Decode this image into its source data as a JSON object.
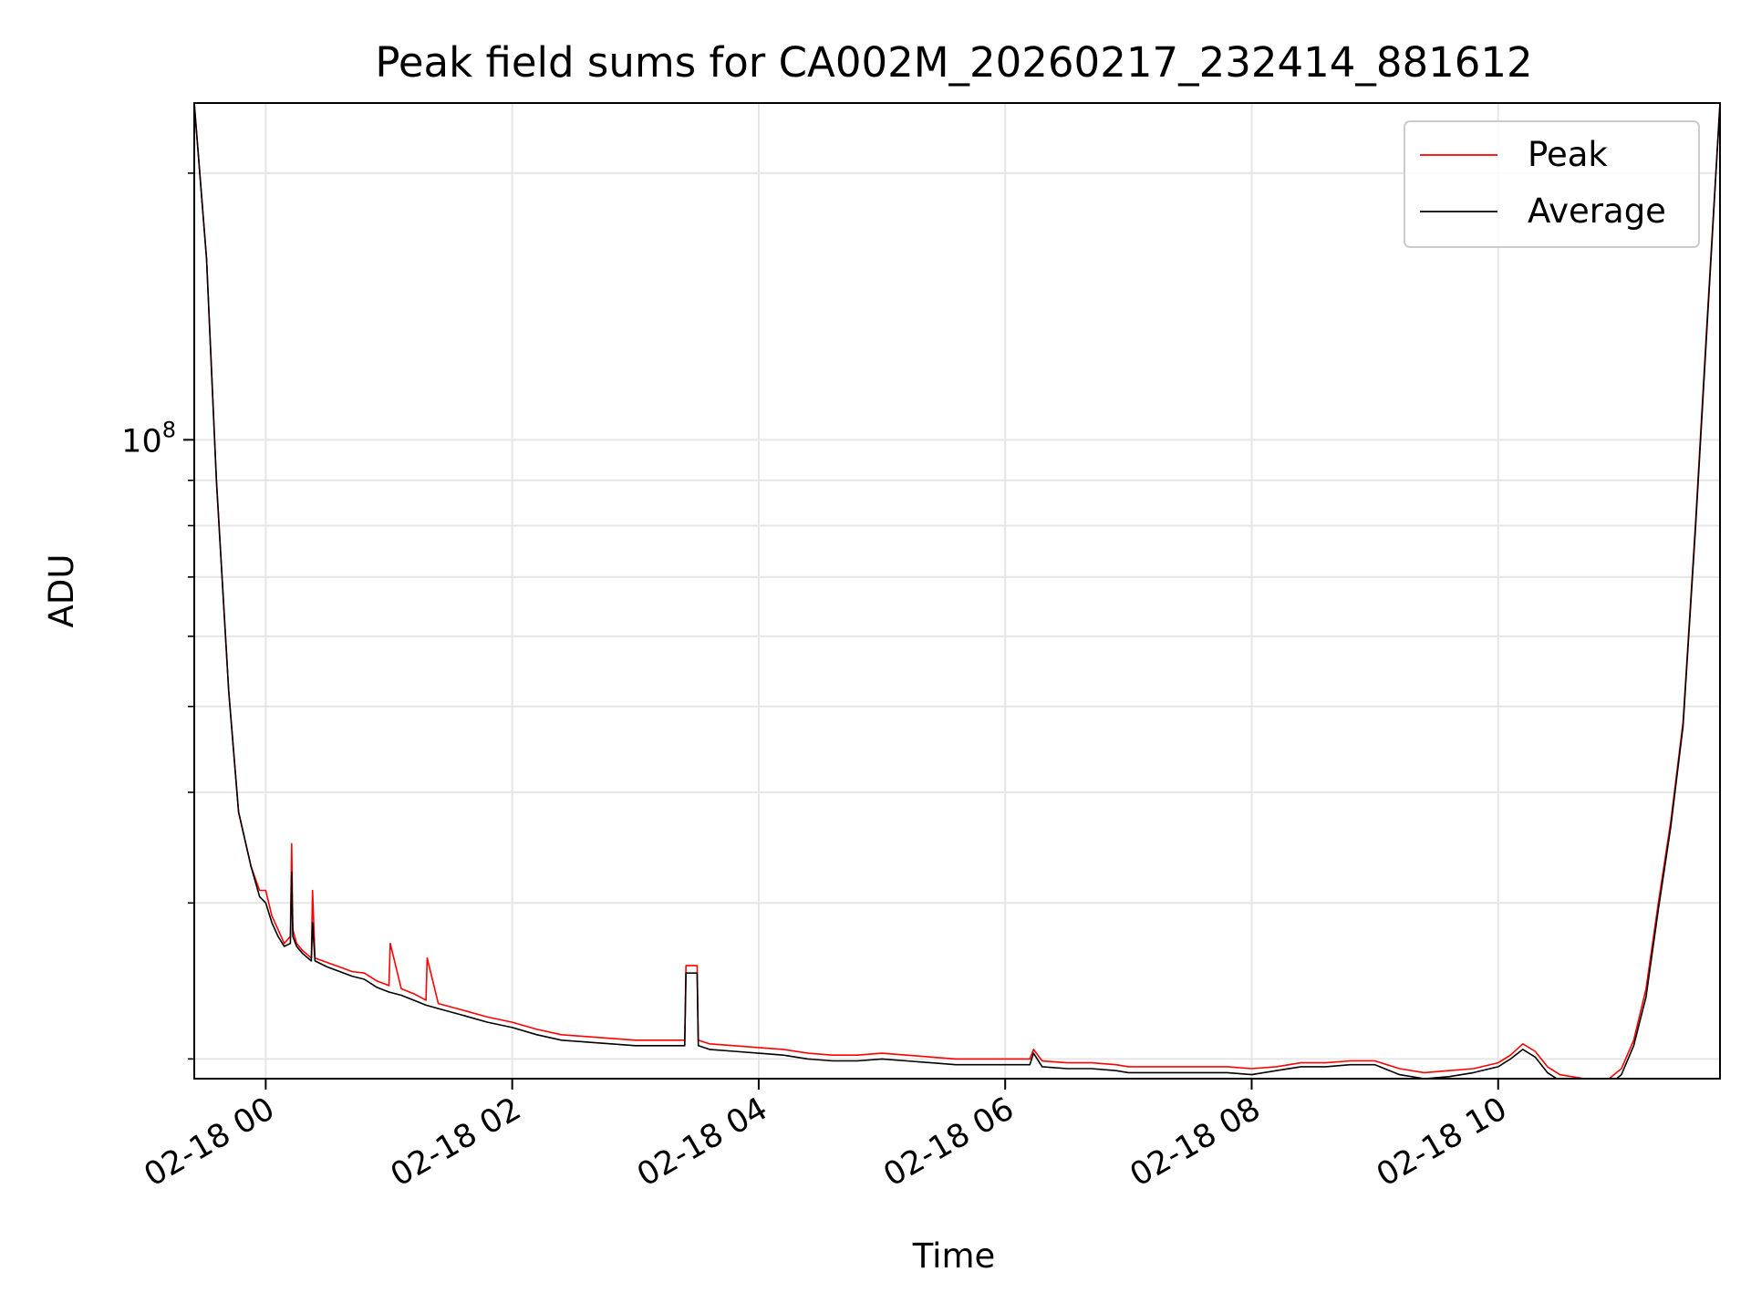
{
  "chart_data": {
    "type": "line",
    "title": "Peak field sums for CA002M_20260217_232414_881612",
    "xlabel": "Time",
    "ylabel": "ADU",
    "x_unit": "hours since 02-18 00:00 (negative = 02-17)",
    "xlim": [
      -0.58,
      11.8
    ],
    "x_ticks": [
      {
        "value": 0,
        "label": "02-18 00"
      },
      {
        "value": 2,
        "label": "02-18 02"
      },
      {
        "value": 4,
        "label": "02-18 04"
      },
      {
        "value": 6,
        "label": "02-18 06"
      },
      {
        "value": 8,
        "label": "02-18 08"
      },
      {
        "value": 10,
        "label": "02-18 10"
      }
    ],
    "y_scale": "log",
    "ylim": [
      19000000,
      240000000
    ],
    "y_major_ticks": [
      {
        "value": 100000000,
        "label_base": "10",
        "label_exp": "8"
      }
    ],
    "y_minor_ticks": [
      20000000,
      30000000,
      40000000,
      50000000,
      60000000,
      70000000,
      80000000,
      90000000,
      200000000
    ],
    "grid": true,
    "legend_position": "top-right",
    "series": [
      {
        "name": "Peak",
        "color": "#ff0000",
        "x": [
          -0.58,
          -0.48,
          -0.4,
          -0.3,
          -0.22,
          -0.12,
          -0.05,
          0.0,
          0.05,
          0.1,
          0.15,
          0.2,
          0.21,
          0.22,
          0.25,
          0.3,
          0.37,
          0.38,
          0.4,
          0.5,
          0.6,
          0.7,
          0.8,
          0.9,
          1.0,
          1.01,
          1.1,
          1.2,
          1.3,
          1.31,
          1.4,
          1.6,
          1.8,
          2.0,
          2.2,
          2.4,
          2.6,
          2.8,
          3.0,
          3.2,
          3.4,
          3.41,
          3.5,
          3.51,
          3.6,
          3.8,
          4.0,
          4.2,
          4.4,
          4.6,
          4.8,
          5.0,
          5.2,
          5.4,
          5.6,
          5.8,
          6.0,
          6.2,
          6.23,
          6.3,
          6.5,
          6.7,
          6.9,
          7.0,
          7.2,
          7.4,
          7.6,
          7.8,
          8.0,
          8.2,
          8.4,
          8.6,
          8.8,
          9.0,
          9.2,
          9.4,
          9.6,
          9.8,
          10.0,
          10.1,
          10.2,
          10.3,
          10.4,
          10.5,
          10.6,
          10.7,
          10.8,
          10.9,
          11.0,
          11.1,
          11.2,
          11.3,
          11.4,
          11.5,
          11.6,
          11.7,
          11.8
        ],
        "y": [
          240000000,
          160000000,
          90000000,
          52000000,
          38000000,
          33000000,
          31000000,
          31000000,
          29000000,
          28000000,
          27000000,
          27500000,
          35000000,
          28000000,
          27000000,
          26500000,
          26000000,
          31000000,
          26000000,
          25700000,
          25400000,
          25100000,
          25000000,
          24500000,
          24200000,
          27000000,
          24000000,
          23700000,
          23300000,
          26000000,
          23100000,
          22700000,
          22300000,
          22000000,
          21600000,
          21300000,
          21200000,
          21100000,
          21000000,
          21000000,
          21000000,
          25500000,
          25500000,
          21000000,
          20800000,
          20700000,
          20600000,
          20500000,
          20300000,
          20200000,
          20200000,
          20300000,
          20200000,
          20100000,
          20000000,
          20000000,
          20000000,
          20000000,
          20500000,
          19900000,
          19800000,
          19800000,
          19700000,
          19600000,
          19600000,
          19600000,
          19600000,
          19600000,
          19500000,
          19600000,
          19800000,
          19800000,
          19900000,
          19900000,
          19500000,
          19300000,
          19400000,
          19500000,
          19800000,
          20200000,
          20800000,
          20400000,
          19600000,
          19200000,
          19100000,
          19000000,
          19000000,
          19000000,
          19500000,
          21000000,
          24000000,
          30000000,
          37000000,
          48000000,
          80000000,
          140000000,
          240000000
        ]
      },
      {
        "name": "Average",
        "color": "#000000",
        "x": [
          -0.58,
          -0.48,
          -0.4,
          -0.3,
          -0.22,
          -0.12,
          -0.05,
          0.0,
          0.05,
          0.1,
          0.15,
          0.2,
          0.21,
          0.22,
          0.25,
          0.3,
          0.37,
          0.38,
          0.4,
          0.5,
          0.6,
          0.7,
          0.8,
          0.9,
          1.0,
          1.1,
          1.2,
          1.3,
          1.4,
          1.6,
          1.8,
          2.0,
          2.2,
          2.4,
          2.6,
          2.8,
          3.0,
          3.2,
          3.4,
          3.41,
          3.5,
          3.51,
          3.6,
          3.8,
          4.0,
          4.2,
          4.4,
          4.6,
          4.8,
          5.0,
          5.2,
          5.4,
          5.6,
          5.8,
          6.0,
          6.2,
          6.23,
          6.3,
          6.5,
          6.7,
          6.9,
          7.0,
          7.2,
          7.4,
          7.6,
          7.8,
          8.0,
          8.2,
          8.4,
          8.6,
          8.8,
          9.0,
          9.2,
          9.4,
          9.6,
          9.8,
          10.0,
          10.1,
          10.2,
          10.3,
          10.4,
          10.5,
          10.6,
          10.7,
          10.8,
          10.9,
          11.0,
          11.1,
          11.2,
          11.3,
          11.4,
          11.5,
          11.6,
          11.7,
          11.8
        ],
        "y": [
          240000000,
          160000000,
          90000000,
          52000000,
          38000000,
          33000000,
          30500000,
          30000000,
          28500000,
          27500000,
          26800000,
          27000000,
          32500000,
          27500000,
          26800000,
          26300000,
          25800000,
          28500000,
          25800000,
          25400000,
          25100000,
          24800000,
          24600000,
          24100000,
          23800000,
          23600000,
          23300000,
          23000000,
          22800000,
          22400000,
          22000000,
          21700000,
          21300000,
          21000000,
          20900000,
          20800000,
          20700000,
          20700000,
          20700000,
          25000000,
          25000000,
          20700000,
          20500000,
          20400000,
          20300000,
          20200000,
          20000000,
          19900000,
          19900000,
          20000000,
          19900000,
          19800000,
          19700000,
          19700000,
          19700000,
          19700000,
          20300000,
          19600000,
          19500000,
          19500000,
          19400000,
          19300000,
          19300000,
          19300000,
          19300000,
          19300000,
          19200000,
          19400000,
          19600000,
          19600000,
          19700000,
          19700000,
          19200000,
          19000000,
          19100000,
          19300000,
          19600000,
          20000000,
          20500000,
          20100000,
          19300000,
          18900000,
          18800000,
          18700000,
          18700000,
          18700000,
          19200000,
          20700000,
          23500000,
          29500000,
          36500000,
          47500000,
          79000000,
          138000000,
          240000000
        ]
      }
    ]
  }
}
